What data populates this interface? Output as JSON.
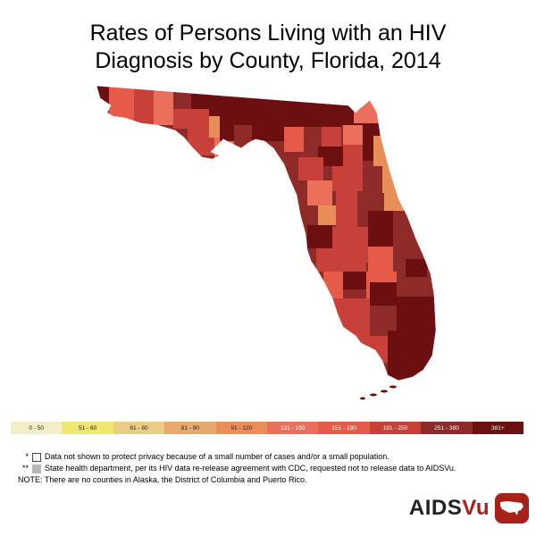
{
  "title": {
    "line1": "Rates of Persons Living with an HIV",
    "line2": "Diagnosis by County, Florida, 2014"
  },
  "legend": [
    {
      "label": "0 - 50",
      "color": "#f4eec8"
    },
    {
      "label": "51 - 60",
      "color": "#efe76e"
    },
    {
      "label": "61 - 80",
      "color": "#e9cd84"
    },
    {
      "label": "81 - 90",
      "color": "#e8a96c"
    },
    {
      "label": "91 - 120",
      "color": "#e98e58"
    },
    {
      "label": "121 - 150",
      "color": "#ec6f5b"
    },
    {
      "label": "151 - 190",
      "color": "#e55a48"
    },
    {
      "label": "191 - 250",
      "color": "#c8403a"
    },
    {
      "label": "251 - 380",
      "color": "#8e2a28"
    },
    {
      "label": "381+",
      "color": "#6b0f10"
    }
  ],
  "notes": {
    "suppressed_mark": "*",
    "suppressed_text": "Data not shown to protect privacy because of a small number of cases and/or a small population.",
    "release_mark": "**",
    "release_text": "State health department, per its HIV data re-release agreement with CDC, requested not to release data to AIDSVu.",
    "note_text": "NOTE: There are no counties in Alaska, the District of Columbia and Puerto Rico."
  },
  "brand": {
    "name_part1": "AIDS",
    "name_part2": "Vu",
    "logo_icon": "us-map-icon",
    "brand_color": "#a8201a"
  },
  "map": {
    "region": "Florida",
    "county_colors": [
      "#6b0f10",
      "#8e2a28",
      "#c8403a",
      "#e55a48",
      "#ec6f5b",
      "#e98e58"
    ]
  }
}
